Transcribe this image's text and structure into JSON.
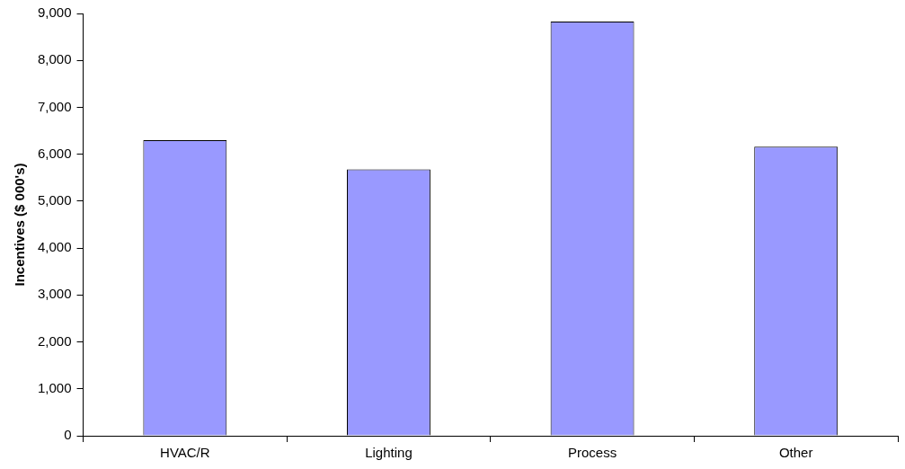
{
  "chart_data": {
    "type": "bar",
    "ylabel": "Incentives ($ 000's)",
    "categories": [
      "HVAC/R",
      "Lighting",
      "Process",
      "Other"
    ],
    "values": [
      6300,
      5680,
      8830,
      6160
    ],
    "color": "#9999ff",
    "ylim": [
      0,
      9000
    ],
    "yticks": [
      0,
      {
        "value": 1000,
        "label": "1,000"
      },
      {
        "value": 2000,
        "label": "2,000"
      },
      {
        "value": 3000,
        "label": "3,000"
      },
      {
        "value": 4000,
        "label": "4,000"
      },
      {
        "value": 5000,
        "label": "5,000"
      },
      {
        "value": 6000,
        "label": "6,000"
      },
      {
        "value": 7000,
        "label": "7,000"
      },
      {
        "value": 8000,
        "label": "8,000"
      },
      {
        "value": 9000,
        "label": "9,000"
      }
    ],
    "grid": false,
    "legend": false
  }
}
